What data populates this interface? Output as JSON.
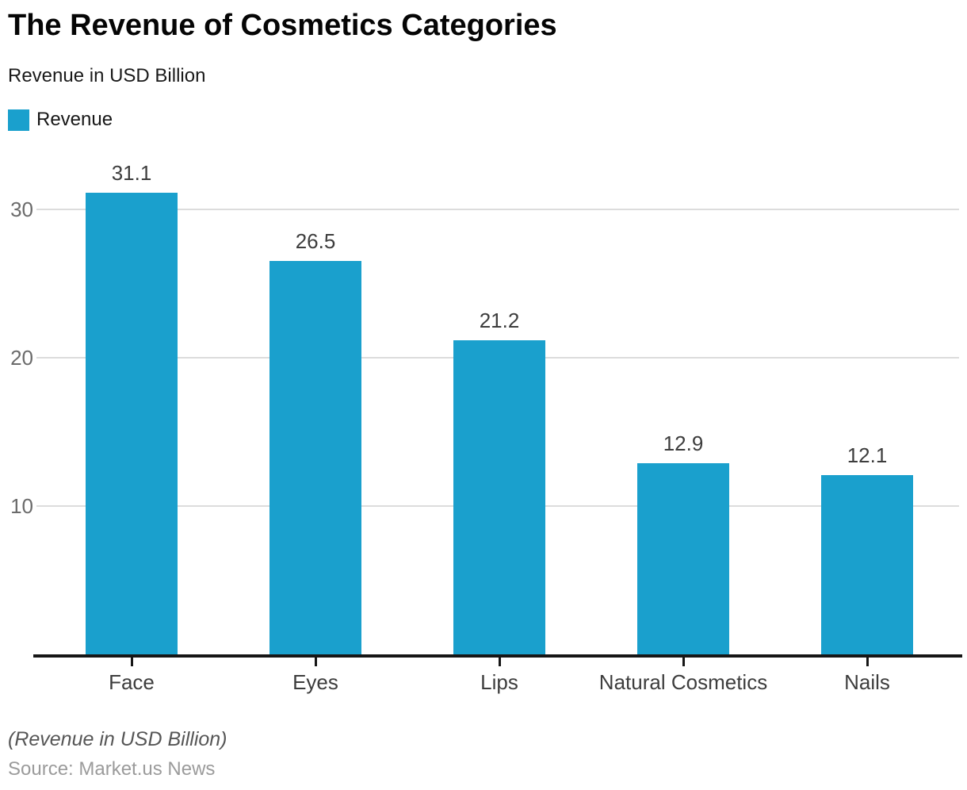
{
  "header": {
    "title": "The Revenue of Cosmetics Categories",
    "subtitle": "Revenue in USD Billion"
  },
  "legend": {
    "label": "Revenue"
  },
  "chart_data": {
    "type": "bar",
    "title": "The Revenue of Cosmetics Categories",
    "subtitle": "Revenue in USD Billion",
    "categories": [
      "Face",
      "Eyes",
      "Lips",
      "Natural Cosmetics",
      "Nails"
    ],
    "series": [
      {
        "name": "Revenue",
        "values": [
          31.1,
          26.5,
          21.2,
          12.9,
          12.1
        ]
      }
    ],
    "value_labels": [
      "31.1",
      "26.5",
      "21.2",
      "12.9",
      "12.1"
    ],
    "xlabel": "",
    "ylabel": "",
    "ylim": [
      0,
      33.5
    ],
    "yticks": [
      10,
      20,
      30
    ],
    "grid": "horizontal",
    "legend_position": "top-left",
    "bar_color": "#1aa0cd"
  },
  "colors": {
    "bar": "#1aa0cd",
    "gridline": "#dcdcdc",
    "axis": "#161616",
    "y_tick_label": "#6b6b6b",
    "value_label": "#3d3d3d",
    "category_label": "#3d3d3d"
  },
  "footer": {
    "note": "(Revenue in USD Billion)",
    "source": "Source: Market.us News"
  }
}
